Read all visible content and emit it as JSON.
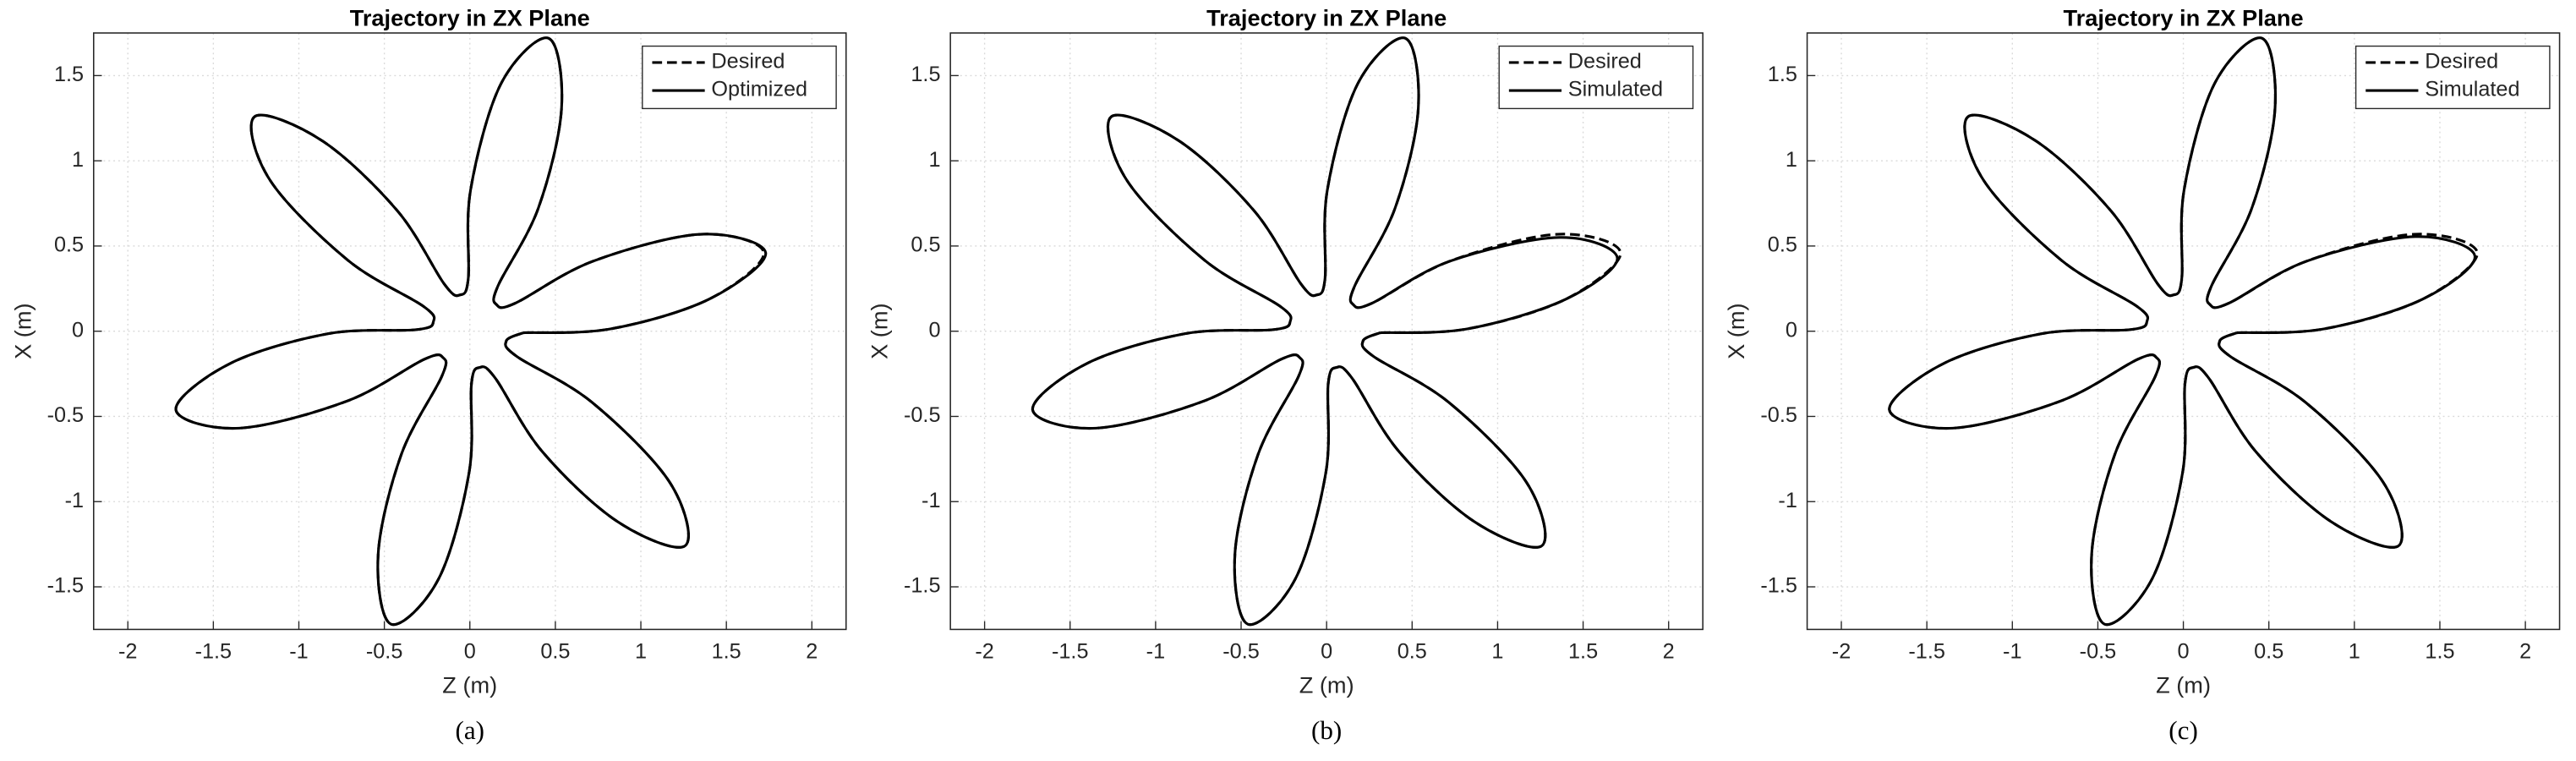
{
  "chart_data": [
    {
      "type": "line",
      "title": "Trajectory in ZX Plane",
      "xlabel": "Z (m)",
      "ylabel": "X (m)",
      "caption": "(a)",
      "xlim": [
        -2.2,
        2.2
      ],
      "ylim": [
        -1.75,
        1.75
      ],
      "xticks": [
        -2,
        -1.5,
        -1,
        -0.5,
        0,
        0.5,
        1,
        1.5,
        2
      ],
      "yticks": [
        -1.5,
        -1,
        -0.5,
        0,
        0.5,
        1,
        1.5
      ],
      "grid": true,
      "legend": "northeast",
      "series": [
        {
          "name": "Desired",
          "color": "#000000",
          "style": "dashed",
          "x": [
            0.313,
            0.825,
            1.399,
            1.719,
            1.349,
            0.718,
            0.267,
            0.156,
            0.165,
            0.4,
            0.536,
            0.461,
            0.182,
            0.004,
            -0.009,
            -0.057,
            -0.149,
            -0.424,
            -0.863,
            -1.259,
            -1.167,
            -0.714,
            -0.276,
            -0.213,
            -0.313,
            -0.825,
            -1.399,
            -1.719,
            -1.349,
            -0.718,
            -0.267,
            -0.156,
            -0.165,
            -0.4,
            -0.536,
            -0.461,
            -0.182,
            -0.004,
            0.009,
            0.057,
            0.149,
            0.424,
            0.863,
            1.259,
            1.167,
            0.714,
            0.276,
            0.213,
            0.313
          ],
          "values": [
            -0.009,
            0.014,
            0.188,
            0.461,
            0.569,
            0.41,
            0.165,
            0.156,
            0.267,
            0.721,
            1.306,
            1.719,
            1.452,
            0.827,
            0.313,
            0.213,
            0.276,
            0.707,
            1.117,
            1.259,
            0.884,
            0.417,
            0.149,
            0.057,
            0.009,
            -0.014,
            -0.188,
            -0.461,
            -0.569,
            -0.41,
            -0.165,
            -0.156,
            -0.267,
            -0.721,
            -1.306,
            -1.719,
            -1.452,
            -0.827,
            -0.313,
            -0.213,
            -0.276,
            -0.707,
            -1.117,
            -1.259,
            -0.884,
            -0.417,
            -0.149,
            -0.057,
            -0.009
          ]
        },
        {
          "name": "Optimized",
          "color": "#000000",
          "style": "solid",
          "x": [
            0.313,
            0.825,
            1.399,
            1.73,
            1.349,
            0.718,
            0.267,
            0.156,
            0.165,
            0.4,
            0.536,
            0.461,
            0.182,
            0.004,
            -0.009,
            -0.057,
            -0.149,
            -0.424,
            -0.863,
            -1.259,
            -1.167,
            -0.714,
            -0.276,
            -0.213,
            -0.313,
            -0.825,
            -1.399,
            -1.719,
            -1.349,
            -0.718,
            -0.267,
            -0.156,
            -0.165,
            -0.4,
            -0.536,
            -0.461,
            -0.182,
            -0.004,
            0.009,
            0.057,
            0.149,
            0.424,
            0.863,
            1.259,
            1.167,
            0.714,
            0.276,
            0.213,
            0.313
          ],
          "values": [
            -0.009,
            0.014,
            0.188,
            0.46,
            0.569,
            0.41,
            0.165,
            0.156,
            0.267,
            0.721,
            1.306,
            1.719,
            1.452,
            0.827,
            0.313,
            0.213,
            0.276,
            0.707,
            1.117,
            1.259,
            0.884,
            0.417,
            0.149,
            0.057,
            0.009,
            -0.014,
            -0.188,
            -0.461,
            -0.569,
            -0.41,
            -0.165,
            -0.156,
            -0.267,
            -0.721,
            -1.306,
            -1.719,
            -1.452,
            -0.827,
            -0.313,
            -0.213,
            -0.276,
            -0.707,
            -1.117,
            -1.259,
            -0.884,
            -0.417,
            -0.149,
            -0.057,
            -0.009
          ]
        }
      ]
    },
    {
      "type": "line",
      "title": "Trajectory in ZX Plane",
      "xlabel": "Z (m)",
      "ylabel": "X (m)",
      "caption": "(b)",
      "xlim": [
        -2.2,
        2.2
      ],
      "ylim": [
        -1.75,
        1.75
      ],
      "xticks": [
        -2,
        -1.5,
        -1,
        -0.5,
        0,
        0.5,
        1,
        1.5,
        2
      ],
      "yticks": [
        -1.5,
        -1,
        -0.5,
        0,
        0.5,
        1,
        1.5
      ],
      "grid": true,
      "legend": "northeast",
      "series": [
        {
          "name": "Desired",
          "color": "#000000",
          "style": "dashed",
          "x": [
            0.313,
            0.825,
            1.399,
            1.719,
            1.349,
            0.718,
            0.267,
            0.156,
            0.165,
            0.4,
            0.536,
            0.461,
            0.182,
            0.004,
            -0.009,
            -0.057,
            -0.149,
            -0.424,
            -0.863,
            -1.259,
            -1.167,
            -0.714,
            -0.276,
            -0.213,
            -0.313,
            -0.825,
            -1.399,
            -1.719,
            -1.349,
            -0.718,
            -0.267,
            -0.156,
            -0.165,
            -0.4,
            -0.536,
            -0.461,
            -0.182,
            -0.004,
            0.009,
            0.057,
            0.149,
            0.424,
            0.863,
            1.259,
            1.167,
            0.714,
            0.276,
            0.213,
            0.313
          ],
          "values": [
            -0.009,
            0.014,
            0.188,
            0.461,
            0.569,
            0.41,
            0.165,
            0.156,
            0.267,
            0.721,
            1.306,
            1.719,
            1.452,
            0.827,
            0.313,
            0.213,
            0.276,
            0.707,
            1.117,
            1.259,
            0.884,
            0.417,
            0.149,
            0.057,
            0.009,
            -0.014,
            -0.188,
            -0.461,
            -0.569,
            -0.41,
            -0.165,
            -0.156,
            -0.267,
            -0.721,
            -1.306,
            -1.719,
            -1.452,
            -0.827,
            -0.313,
            -0.213,
            -0.276,
            -0.707,
            -1.117,
            -1.259,
            -0.884,
            -0.417,
            -0.149,
            -0.057,
            -0.009
          ]
        },
        {
          "name": "Simulated",
          "color": "#000000",
          "style": "solid",
          "x": [
            0.313,
            0.825,
            1.399,
            1.7,
            1.36,
            0.718,
            0.267,
            0.156,
            0.165,
            0.4,
            0.536,
            0.461,
            0.182,
            0.004,
            -0.009,
            -0.057,
            -0.149,
            -0.424,
            -0.863,
            -1.259,
            -1.167,
            -0.714,
            -0.276,
            -0.213,
            -0.313,
            -0.825,
            -1.399,
            -1.719,
            -1.349,
            -0.718,
            -0.267,
            -0.156,
            -0.165,
            -0.4,
            -0.536,
            -0.461,
            -0.182,
            -0.004,
            0.009,
            0.057,
            0.149,
            0.424,
            0.863,
            1.259,
            1.167,
            0.714,
            0.276,
            0.213,
            0.313
          ],
          "values": [
            -0.009,
            0.014,
            0.188,
            0.43,
            0.55,
            0.41,
            0.165,
            0.156,
            0.267,
            0.721,
            1.306,
            1.719,
            1.452,
            0.827,
            0.313,
            0.213,
            0.276,
            0.707,
            1.117,
            1.259,
            0.884,
            0.417,
            0.149,
            0.057,
            0.009,
            -0.014,
            -0.188,
            -0.461,
            -0.569,
            -0.41,
            -0.165,
            -0.156,
            -0.267,
            -0.721,
            -1.306,
            -1.719,
            -1.452,
            -0.827,
            -0.313,
            -0.213,
            -0.276,
            -0.707,
            -1.117,
            -1.259,
            -0.884,
            -0.417,
            -0.149,
            -0.057,
            -0.009
          ]
        }
      ]
    },
    {
      "type": "line",
      "title": "Trajectory in ZX Plane",
      "xlabel": "Z (m)",
      "ylabel": "X (m)",
      "caption": "(c)",
      "xlim": [
        -2.2,
        2.2
      ],
      "ylim": [
        -1.75,
        1.75
      ],
      "xticks": [
        -2,
        -1.5,
        -1,
        -0.5,
        0,
        0.5,
        1,
        1.5,
        2
      ],
      "yticks": [
        -1.5,
        -1,
        -0.5,
        0,
        0.5,
        1,
        1.5
      ],
      "grid": true,
      "legend": "northeast",
      "series": [
        {
          "name": "Desired",
          "color": "#000000",
          "style": "dashed",
          "x": [
            0.313,
            0.825,
            1.399,
            1.719,
            1.349,
            0.718,
            0.267,
            0.156,
            0.165,
            0.4,
            0.536,
            0.461,
            0.182,
            0.004,
            -0.009,
            -0.057,
            -0.149,
            -0.424,
            -0.863,
            -1.259,
            -1.167,
            -0.714,
            -0.276,
            -0.213,
            -0.313,
            -0.825,
            -1.399,
            -1.719,
            -1.349,
            -0.718,
            -0.267,
            -0.156,
            -0.165,
            -0.4,
            -0.536,
            -0.461,
            -0.182,
            -0.004,
            0.009,
            0.057,
            0.149,
            0.424,
            0.863,
            1.259,
            1.167,
            0.714,
            0.276,
            0.213,
            0.313
          ],
          "values": [
            -0.009,
            0.014,
            0.188,
            0.461,
            0.569,
            0.41,
            0.165,
            0.156,
            0.267,
            0.721,
            1.306,
            1.719,
            1.452,
            0.827,
            0.313,
            0.213,
            0.276,
            0.707,
            1.117,
            1.259,
            0.884,
            0.417,
            0.149,
            0.057,
            0.009,
            -0.014,
            -0.188,
            -0.461,
            -0.569,
            -0.41,
            -0.165,
            -0.156,
            -0.267,
            -0.721,
            -1.306,
            -1.719,
            -1.452,
            -0.827,
            -0.313,
            -0.213,
            -0.276,
            -0.707,
            -1.117,
            -1.259,
            -0.884,
            -0.417,
            -0.149,
            -0.057,
            -0.009
          ]
        },
        {
          "name": "Simulated",
          "color": "#000000",
          "style": "solid",
          "x": [
            0.313,
            0.825,
            1.399,
            1.705,
            1.355,
            0.718,
            0.267,
            0.156,
            0.165,
            0.4,
            0.536,
            0.461,
            0.182,
            0.004,
            -0.009,
            -0.057,
            -0.149,
            -0.424,
            -0.863,
            -1.259,
            -1.167,
            -0.714,
            -0.276,
            -0.213,
            -0.313,
            -0.825,
            -1.399,
            -1.719,
            -1.349,
            -0.718,
            -0.267,
            -0.156,
            -0.165,
            -0.4,
            -0.536,
            -0.461,
            -0.182,
            -0.004,
            0.009,
            0.057,
            0.149,
            0.424,
            0.863,
            1.259,
            1.167,
            0.714,
            0.276,
            0.213,
            0.313
          ],
          "values": [
            -0.009,
            0.014,
            0.188,
            0.44,
            0.555,
            0.41,
            0.165,
            0.156,
            0.267,
            0.721,
            1.306,
            1.719,
            1.452,
            0.827,
            0.313,
            0.213,
            0.276,
            0.707,
            1.117,
            1.259,
            0.884,
            0.417,
            0.149,
            0.057,
            0.009,
            -0.014,
            -0.188,
            -0.461,
            -0.569,
            -0.41,
            -0.165,
            -0.156,
            -0.267,
            -0.721,
            -1.306,
            -1.719,
            -1.452,
            -0.827,
            -0.313,
            -0.213,
            -0.276,
            -0.707,
            -1.117,
            -1.259,
            -0.884,
            -0.417,
            -0.149,
            -0.057,
            -0.009
          ]
        }
      ]
    }
  ]
}
